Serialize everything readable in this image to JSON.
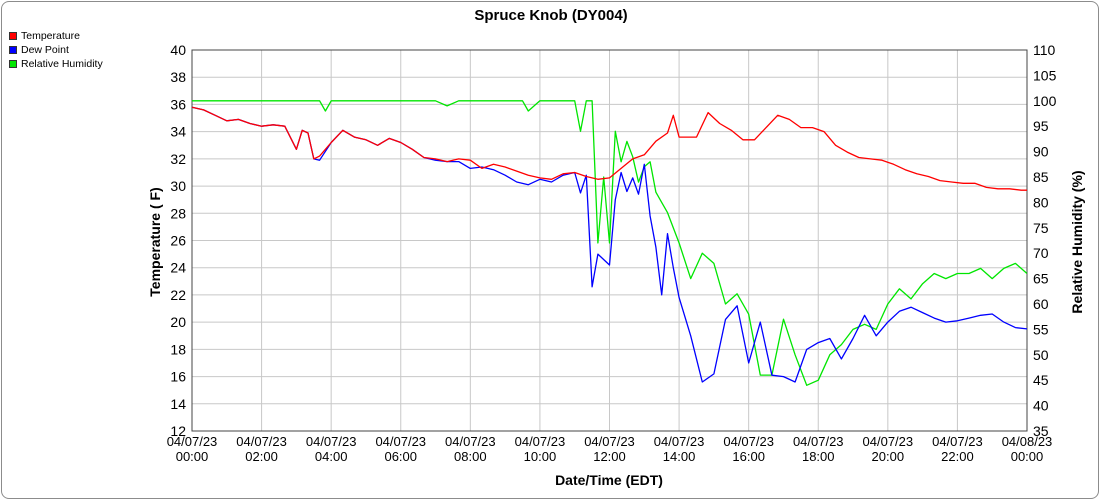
{
  "chart_data": {
    "type": "line",
    "title": "Spruce Knob (DY004)",
    "xlabel": "Date/Time (EDT)",
    "ylabel_left": "Temperature ( F)",
    "ylabel_right": "Relative Humidity (%)",
    "ylim_left": [
      12,
      40
    ],
    "ylim_right": [
      35,
      110
    ],
    "yticks_left": [
      "12",
      "14",
      "16",
      "18",
      "20",
      "22",
      "24",
      "26",
      "28",
      "30",
      "32",
      "34",
      "36",
      "38",
      "40"
    ],
    "yticks_right": [
      "35",
      "40",
      "45",
      "50",
      "55",
      "60",
      "65",
      "70",
      "75",
      "80",
      "85",
      "90",
      "95",
      "100",
      "105",
      "110"
    ],
    "xlim_hours": [
      0,
      24
    ],
    "xticks": [
      {
        "date": "04/07/23",
        "time": "00:00"
      },
      {
        "date": "04/07/23",
        "time": "02:00"
      },
      {
        "date": "04/07/23",
        "time": "04:00"
      },
      {
        "date": "04/07/23",
        "time": "06:00"
      },
      {
        "date": "04/07/23",
        "time": "08:00"
      },
      {
        "date": "04/07/23",
        "time": "10:00"
      },
      {
        "date": "04/07/23",
        "time": "12:00"
      },
      {
        "date": "04/07/23",
        "time": "14:00"
      },
      {
        "date": "04/07/23",
        "time": "16:00"
      },
      {
        "date": "04/07/23",
        "time": "18:00"
      },
      {
        "date": "04/07/23",
        "time": "20:00"
      },
      {
        "date": "04/07/23",
        "time": "22:00"
      },
      {
        "date": "04/08/23",
        "time": "00:00"
      }
    ],
    "legend_position": "top-left",
    "series": [
      {
        "name": "Temperature",
        "color": "#ff0000",
        "axis": "left",
        "x": [
          "04/07/23 00:00",
          "04/07/23 00:20",
          "04/07/23 00:40",
          "04/07/23 01:00",
          "04/07/23 01:20",
          "04/07/23 01:40",
          "04/07/23 02:00",
          "04/07/23 02:20",
          "04/07/23 02:40",
          "04/07/23 03:00",
          "04/07/23 03:10",
          "04/07/23 03:20",
          "04/07/23 03:30",
          "04/07/23 03:40",
          "04/07/23 04:00",
          "04/07/23 04:20",
          "04/07/23 04:40",
          "04/07/23 05:00",
          "04/07/23 05:20",
          "04/07/23 05:40",
          "04/07/23 06:00",
          "04/07/23 06:20",
          "04/07/23 06:40",
          "04/07/23 07:00",
          "04/07/23 07:20",
          "04/07/23 07:40",
          "04/07/23 08:00",
          "04/07/23 08:20",
          "04/07/23 08:40",
          "04/07/23 09:00",
          "04/07/23 09:20",
          "04/07/23 09:40",
          "04/07/23 10:00",
          "04/07/23 10:20",
          "04/07/23 10:40",
          "04/07/23 11:00",
          "04/07/23 11:20",
          "04/07/23 11:40",
          "04/07/23 12:00",
          "04/07/23 12:20",
          "04/07/23 12:40",
          "04/07/23 13:00",
          "04/07/23 13:20",
          "04/07/23 13:40",
          "04/07/23 13:50",
          "04/07/23 14:00",
          "04/07/23 14:30",
          "04/07/23 14:50",
          "04/07/23 15:10",
          "04/07/23 15:30",
          "04/07/23 15:50",
          "04/07/23 16:10",
          "04/07/23 16:30",
          "04/07/23 16:50",
          "04/07/23 17:10",
          "04/07/23 17:30",
          "04/07/23 17:50",
          "04/07/23 18:10",
          "04/07/23 18:30",
          "04/07/23 18:50",
          "04/07/23 19:10",
          "04/07/23 19:30",
          "04/07/23 19:50",
          "04/07/23 20:10",
          "04/07/23 20:30",
          "04/07/23 20:50",
          "04/07/23 21:10",
          "04/07/23 21:30",
          "04/07/23 21:50",
          "04/07/23 22:10",
          "04/07/23 22:30",
          "04/07/23 22:50",
          "04/07/23 23:10",
          "04/07/23 23:30",
          "04/07/23 23:50",
          "04/08/23 00:00"
        ],
        "values": [
          35.8,
          35.6,
          35.2,
          34.8,
          34.9,
          34.6,
          34.4,
          34.5,
          34.4,
          32.7,
          34.1,
          33.9,
          32.0,
          32.2,
          33.2,
          34.1,
          33.6,
          33.4,
          33.0,
          33.5,
          33.2,
          32.7,
          32.1,
          32.0,
          31.8,
          32.0,
          31.9,
          31.3,
          31.6,
          31.4,
          31.1,
          30.8,
          30.6,
          30.5,
          30.9,
          31.0,
          30.7,
          30.5,
          30.6,
          31.3,
          32.0,
          32.3,
          33.3,
          33.9,
          35.2,
          33.6,
          33.6,
          35.4,
          34.6,
          34.1,
          33.4,
          33.4,
          34.3,
          35.2,
          34.9,
          34.3,
          34.3,
          34.0,
          33.0,
          32.5,
          32.1,
          32.0,
          31.9,
          31.6,
          31.2,
          30.9,
          30.7,
          30.4,
          30.3,
          30.2,
          30.2,
          29.9,
          29.8,
          29.8,
          29.7,
          29.7
        ]
      },
      {
        "name": "Dew Point",
        "color": "#0000ff",
        "axis": "left",
        "x": [
          "04/07/23 00:00",
          "04/07/23 00:20",
          "04/07/23 00:40",
          "04/07/23 01:00",
          "04/07/23 01:20",
          "04/07/23 01:40",
          "04/07/23 02:00",
          "04/07/23 02:20",
          "04/07/23 02:40",
          "04/07/23 03:00",
          "04/07/23 03:10",
          "04/07/23 03:20",
          "04/07/23 03:30",
          "04/07/23 03:40",
          "04/07/23 04:00",
          "04/07/23 04:20",
          "04/07/23 04:40",
          "04/07/23 05:00",
          "04/07/23 05:20",
          "04/07/23 05:40",
          "04/07/23 06:00",
          "04/07/23 06:20",
          "04/07/23 06:40",
          "04/07/23 07:00",
          "04/07/23 07:20",
          "04/07/23 07:40",
          "04/07/23 08:00",
          "04/07/23 08:20",
          "04/07/23 08:40",
          "04/07/23 09:00",
          "04/07/23 09:20",
          "04/07/23 09:40",
          "04/07/23 10:00",
          "04/07/23 10:20",
          "04/07/23 10:40",
          "04/07/23 11:00",
          "04/07/23 11:10",
          "04/07/23 11:20",
          "04/07/23 11:30",
          "04/07/23 11:40",
          "04/07/23 12:00",
          "04/07/23 12:10",
          "04/07/23 12:20",
          "04/07/23 12:30",
          "04/07/23 12:40",
          "04/07/23 12:50",
          "04/07/23 13:00",
          "04/07/23 13:10",
          "04/07/23 13:20",
          "04/07/23 13:30",
          "04/07/23 13:40",
          "04/07/23 13:50",
          "04/07/23 14:00",
          "04/07/23 14:20",
          "04/07/23 14:40",
          "04/07/23 15:00",
          "04/07/23 15:20",
          "04/07/23 15:40",
          "04/07/23 16:00",
          "04/07/23 16:20",
          "04/07/23 16:40",
          "04/07/23 17:00",
          "04/07/23 17:20",
          "04/07/23 17:40",
          "04/07/23 18:00",
          "04/07/23 18:20",
          "04/07/23 18:40",
          "04/07/23 19:00",
          "04/07/23 19:20",
          "04/07/23 19:40",
          "04/07/23 20:00",
          "04/07/23 20:20",
          "04/07/23 20:40",
          "04/07/23 21:00",
          "04/07/23 21:20",
          "04/07/23 21:40",
          "04/07/23 22:00",
          "04/07/23 22:20",
          "04/07/23 22:40",
          "04/07/23 23:00",
          "04/07/23 23:20",
          "04/07/23 23:40",
          "04/08/23 00:00"
        ],
        "values": [
          35.8,
          35.6,
          35.2,
          34.8,
          34.9,
          34.6,
          34.4,
          34.5,
          34.4,
          32.7,
          34.1,
          33.9,
          32.0,
          31.9,
          33.2,
          34.1,
          33.6,
          33.4,
          33.0,
          33.5,
          33.2,
          32.7,
          32.1,
          31.9,
          31.8,
          31.8,
          31.3,
          31.4,
          31.2,
          30.8,
          30.3,
          30.1,
          30.5,
          30.3,
          30.8,
          31.0,
          29.5,
          30.8,
          22.6,
          25.0,
          24.2,
          29.0,
          31.0,
          29.6,
          30.6,
          29.4,
          31.6,
          27.8,
          25.5,
          22.0,
          26.5,
          24.0,
          21.8,
          19.0,
          15.6,
          16.2,
          20.2,
          21.2,
          17.0,
          20.0,
          16.1,
          16.0,
          15.6,
          18.0,
          18.5,
          18.8,
          17.3,
          18.8,
          20.5,
          19.0,
          20.0,
          20.8,
          21.1,
          20.7,
          20.3,
          20.0,
          20.1,
          20.3,
          20.5,
          20.6,
          20.0,
          19.6,
          19.5
        ]
      },
      {
        "name": "Relative Humidity",
        "color": "#00e600",
        "axis": "right",
        "x": [
          "04/07/23 00:00",
          "04/07/23 01:00",
          "04/07/23 02:00",
          "04/07/23 03:00",
          "04/07/23 03:40",
          "04/07/23 03:50",
          "04/07/23 04:00",
          "04/07/23 05:00",
          "04/07/23 06:00",
          "04/07/23 07:00",
          "04/07/23 07:20",
          "04/07/23 07:40",
          "04/07/23 08:00",
          "04/07/23 09:00",
          "04/07/23 09:30",
          "04/07/23 09:40",
          "04/07/23 09:50",
          "04/07/23 10:00",
          "04/07/23 10:30",
          "04/07/23 11:00",
          "04/07/23 11:10",
          "04/07/23 11:20",
          "04/07/23 11:30",
          "04/07/23 11:40",
          "04/07/23 11:50",
          "04/07/23 12:00",
          "04/07/23 12:10",
          "04/07/23 12:20",
          "04/07/23 12:30",
          "04/07/23 12:40",
          "04/07/23 12:50",
          "04/07/23 13:00",
          "04/07/23 13:10",
          "04/07/23 13:20",
          "04/07/23 13:30",
          "04/07/23 13:40",
          "04/07/23 14:00",
          "04/07/23 14:20",
          "04/07/23 14:40",
          "04/07/23 15:00",
          "04/07/23 15:20",
          "04/07/23 15:40",
          "04/07/23 16:00",
          "04/07/23 16:20",
          "04/07/23 16:40",
          "04/07/23 17:00",
          "04/07/23 17:20",
          "04/07/23 17:40",
          "04/07/23 18:00",
          "04/07/23 18:20",
          "04/07/23 18:40",
          "04/07/23 19:00",
          "04/07/23 19:20",
          "04/07/23 19:40",
          "04/07/23 20:00",
          "04/07/23 20:20",
          "04/07/23 20:40",
          "04/07/23 21:00",
          "04/07/23 21:20",
          "04/07/23 21:40",
          "04/07/23 22:00",
          "04/07/23 22:20",
          "04/07/23 22:40",
          "04/07/23 23:00",
          "04/07/23 23:20",
          "04/07/23 23:40",
          "04/08/23 00:00"
        ],
        "values": [
          100,
          100,
          100,
          100,
          100,
          98,
          100,
          100,
          100,
          100,
          99,
          100,
          100,
          100,
          100,
          98,
          99,
          100,
          100,
          100,
          94,
          100,
          100,
          72,
          85,
          72,
          94,
          88,
          92,
          89,
          84,
          87,
          88,
          82,
          80,
          78,
          72,
          65,
          70,
          68,
          60,
          62,
          58,
          46,
          46,
          57,
          50,
          44,
          45,
          50,
          52,
          55,
          56,
          55,
          60,
          63,
          61,
          64,
          66,
          65,
          66,
          66,
          67,
          65,
          67,
          68,
          66
        ]
      }
    ]
  }
}
